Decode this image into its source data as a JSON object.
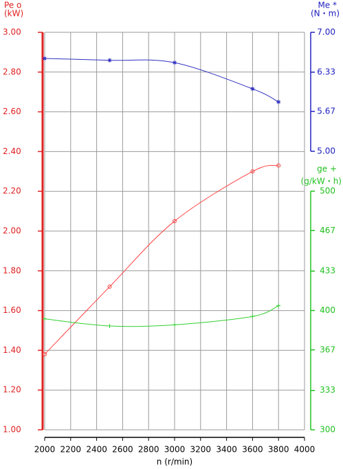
{
  "chart_data": {
    "type": "line",
    "y_label": "Pe o",
    "y_unit": "(kW)",
    "y2_label": "Me *",
    "y2_unit": "(N・m)",
    "y3_label": "ge +",
    "y3_unit": "(g/kW・h)",
    "x_label": "n (r/min)",
    "x": [
      2000,
      2500,
      3000,
      3600,
      3800
    ],
    "xlim": [
      2000,
      4000
    ],
    "xticks": [
      2000,
      2200,
      2400,
      2600,
      2800,
      3000,
      3200,
      3400,
      3600,
      3800,
      4000
    ],
    "ylim": [
      1,
      3
    ],
    "yticks": [
      {
        "value": 1,
        "label": "1.00"
      },
      {
        "value": 1.2,
        "label": "1.20"
      },
      {
        "value": 1.4,
        "label": "1.40"
      },
      {
        "value": 1.6,
        "label": "1.60"
      },
      {
        "value": 1.8,
        "label": "1.80"
      },
      {
        "value": 2,
        "label": "2.00"
      },
      {
        "value": 2.2,
        "label": "2.20"
      },
      {
        "value": 2.4,
        "label": "2.40"
      },
      {
        "value": 2.6,
        "label": "2.60"
      },
      {
        "value": 2.8,
        "label": "2.80"
      },
      {
        "value": 3,
        "label": "3.00"
      }
    ],
    "y2lim": [
      5,
      7
    ],
    "y2ticks": [
      {
        "value": 5,
        "label": "5.00"
      },
      5.67,
      6.33,
      {
        "value": 7,
        "label": "7.00"
      }
    ],
    "y3lim": [
      300,
      500
    ],
    "y3ticks": [
      300,
      333,
      367,
      400,
      433,
      467,
      500
    ],
    "grid": true,
    "series": [
      {
        "name": "Pe",
        "color": "#ff4040",
        "axis": "y",
        "marker": "circle",
        "values": [
          1.38,
          1.72,
          2.05,
          2.3,
          2.33
        ]
      },
      {
        "name": "Me",
        "color": "#3030c0",
        "axis": "y2",
        "marker": "star",
        "values": [
          6.56,
          6.53,
          6.49,
          6.05,
          5.83
        ]
      },
      {
        "name": "ge",
        "color": "#30d030",
        "axis": "y3",
        "marker": "plus",
        "values": [
          393,
          387,
          388,
          395,
          404
        ]
      }
    ]
  }
}
